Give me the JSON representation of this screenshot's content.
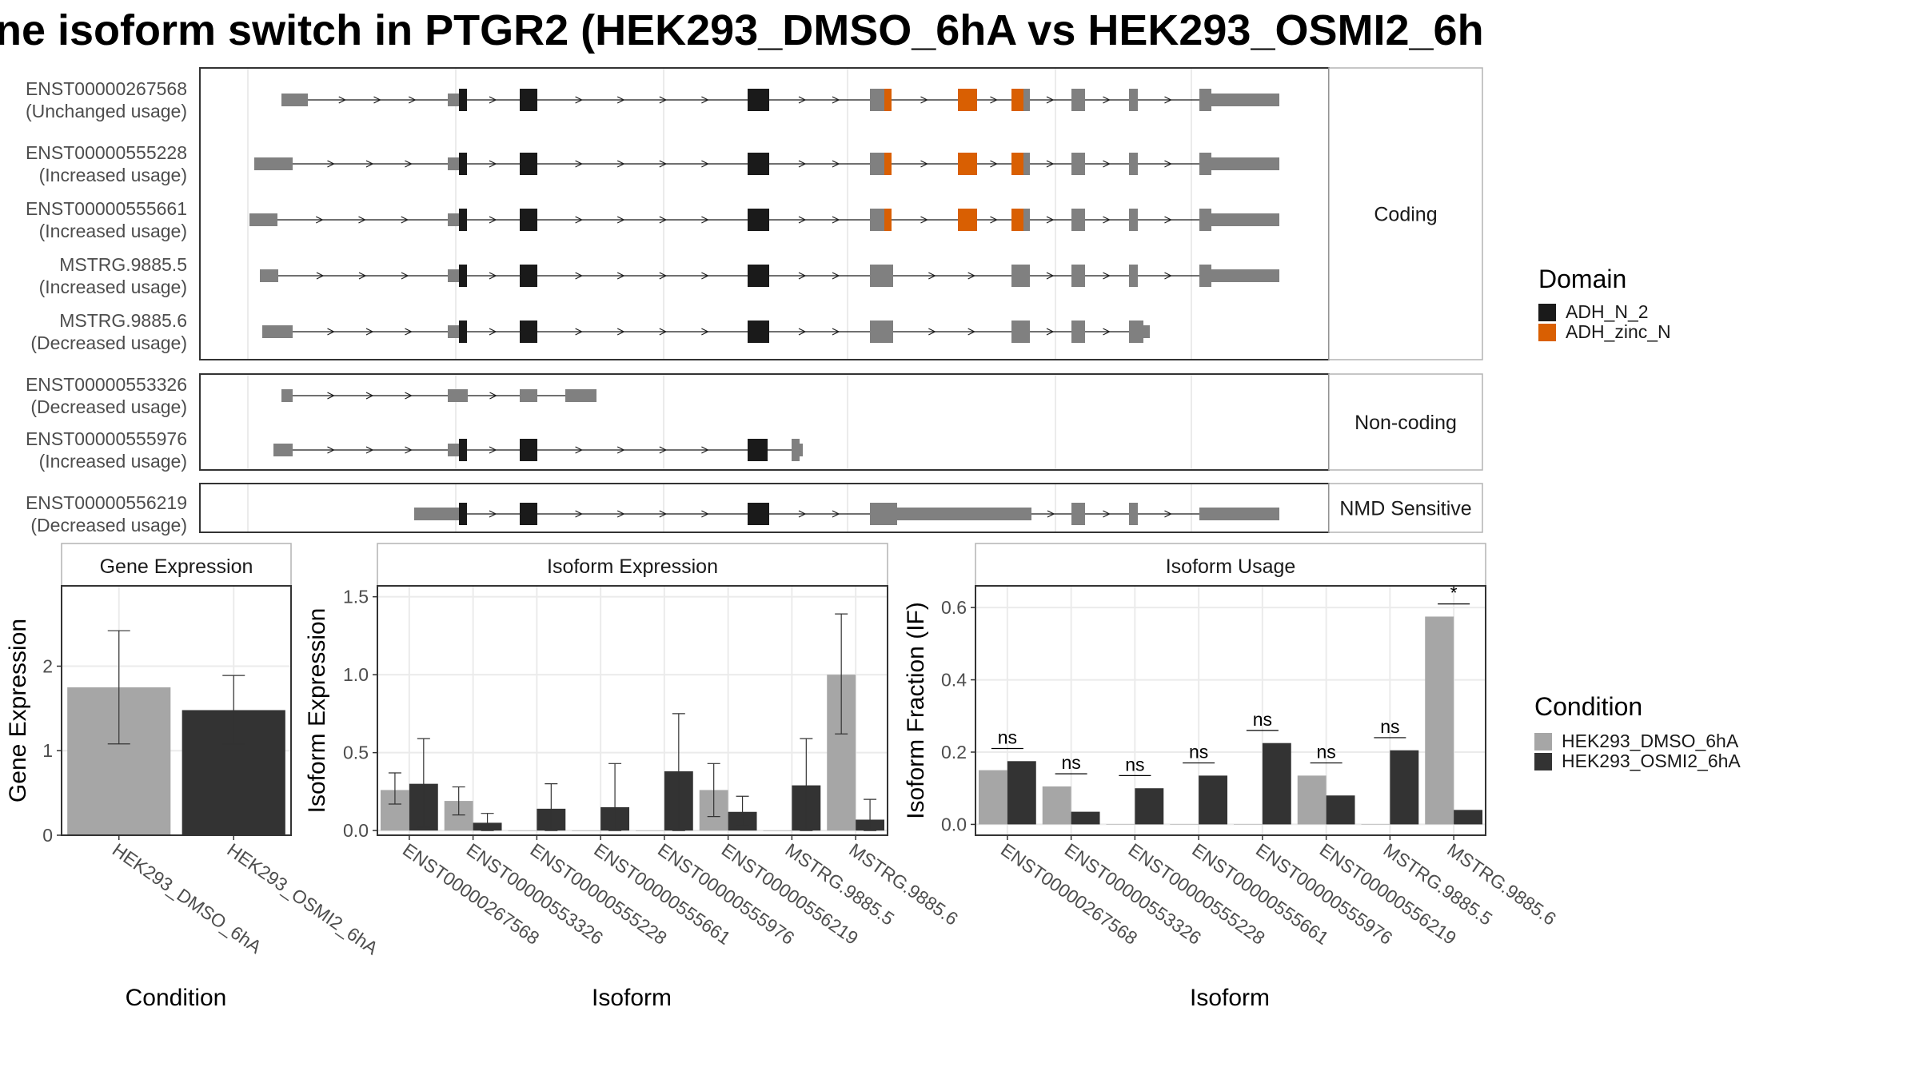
{
  "figure": {
    "title": "ne isoform switch in PTGR2 (HEK293_DMSO_6hA vs HEK293_OSMI2_6h"
  },
  "transcript_panel": {
    "groups": [
      {
        "strip": "Coding",
        "isoforms": [
          {
            "id": "ENST00000267568",
            "status": "(Unchanged usage)"
          },
          {
            "id": "ENST00000555228",
            "status": "(Increased usage)"
          },
          {
            "id": "ENST00000555661",
            "status": "(Increased usage)"
          },
          {
            "id": "MSTRG.9885.5",
            "status": "(Increased usage)"
          },
          {
            "id": "MSTRG.9885.6",
            "status": "(Decreased usage)"
          }
        ]
      },
      {
        "strip": "Non-coding",
        "isoforms": [
          {
            "id": "ENST00000553326",
            "status": "(Decreased usage)"
          },
          {
            "id": "ENST00000555976",
            "status": "(Increased usage)"
          }
        ]
      },
      {
        "strip": "NMD Sensitive",
        "isoforms": [
          {
            "id": "ENST00000556219",
            "status": "(Decreased usage)"
          }
        ]
      }
    ],
    "domain_legend": {
      "title": "Domain",
      "items": [
        {
          "label": "ADH_N_2",
          "color": "#1a1a1a"
        },
        {
          "label": "ADH_zinc_N",
          "color": "#d95f02"
        }
      ]
    },
    "colors": {
      "exon": "#808080",
      "domain_n2": "#1a1a1a",
      "domain_zinc": "#d95f02"
    }
  },
  "condition_legend": {
    "title": "Condition",
    "items": [
      {
        "label": "HEK293_DMSO_6hA",
        "color": "#a6a6a6"
      },
      {
        "label": "HEK293_OSMI2_6hA",
        "color": "#333333"
      }
    ]
  },
  "chart_data": [
    {
      "type": "bar",
      "title": "Gene Expression",
      "xlabel": "Condition",
      "ylabel": "Gene Expression",
      "ylim": [
        0,
        2.95
      ],
      "yticks": [
        "0",
        "1",
        "2"
      ],
      "categories": [
        "HEK293_DMSO_6hA",
        "HEK293_OSMI2_6hA"
      ],
      "values": [
        1.75,
        1.48
      ],
      "err_low": [
        1.08,
        1.08
      ],
      "err_high": [
        2.42,
        1.89
      ],
      "colors": [
        "#a6a6a6",
        "#333333"
      ]
    },
    {
      "type": "bar",
      "title": "Isoform Expression",
      "xlabel": "Isoform",
      "ylabel": "Isoform Expression",
      "ylim": [
        -0.03,
        1.57
      ],
      "yticks": [
        "0.0",
        "0.5",
        "1.0",
        "1.5"
      ],
      "categories": [
        "ENST00000267568",
        "ENST00000553326",
        "ENST00000555228",
        "ENST00000555661",
        "ENST00000555976",
        "ENST00000556219",
        "MSTRG.9885.5",
        "MSTRG.9885.6"
      ],
      "series": [
        {
          "name": "HEK293_DMSO_6hA",
          "values": [
            0.26,
            0.19,
            0.0,
            0.0,
            0.0,
            0.26,
            0.0,
            1.0
          ],
          "err_low": [
            0.17,
            0.1,
            0.0,
            0.0,
            0.0,
            0.09,
            0.0,
            0.62
          ],
          "err_high": [
            0.37,
            0.28,
            0.0,
            0.0,
            0.0,
            0.43,
            0.0,
            1.39
          ]
        },
        {
          "name": "HEK293_OSMI2_6hA",
          "values": [
            0.3,
            0.05,
            0.14,
            0.15,
            0.38,
            0.12,
            0.29,
            0.07
          ],
          "err_low": [
            0.02,
            0.0,
            0.0,
            0.0,
            0.0,
            0.03,
            0.0,
            0.0
          ],
          "err_high": [
            0.59,
            0.11,
            0.3,
            0.43,
            0.75,
            0.22,
            0.59,
            0.2
          ]
        }
      ]
    },
    {
      "type": "bar",
      "title": "Isoform Usage",
      "xlabel": "Isoform",
      "ylabel": "Isoform Fraction (IF)",
      "ylim": [
        -0.03,
        0.66
      ],
      "yticks": [
        "0.0",
        "0.2",
        "0.4",
        "0.6"
      ],
      "categories": [
        "ENST00000267568",
        "ENST00000553326",
        "ENST00000555228",
        "ENST00000555661",
        "ENST00000555976",
        "ENST00000556219",
        "MSTRG.9885.5",
        "MSTRG.9885.6"
      ],
      "series": [
        {
          "name": "HEK293_DMSO_6hA",
          "values": [
            0.15,
            0.105,
            0.0,
            0.0,
            0.0,
            0.135,
            0.0,
            0.575
          ]
        },
        {
          "name": "HEK293_OSMI2_6hA",
          "values": [
            0.175,
            0.035,
            0.1,
            0.135,
            0.225,
            0.08,
            0.205,
            0.04
          ]
        }
      ],
      "significance": [
        "ns",
        "ns",
        "ns",
        "ns",
        "ns",
        "ns",
        "ns",
        "*"
      ]
    }
  ]
}
